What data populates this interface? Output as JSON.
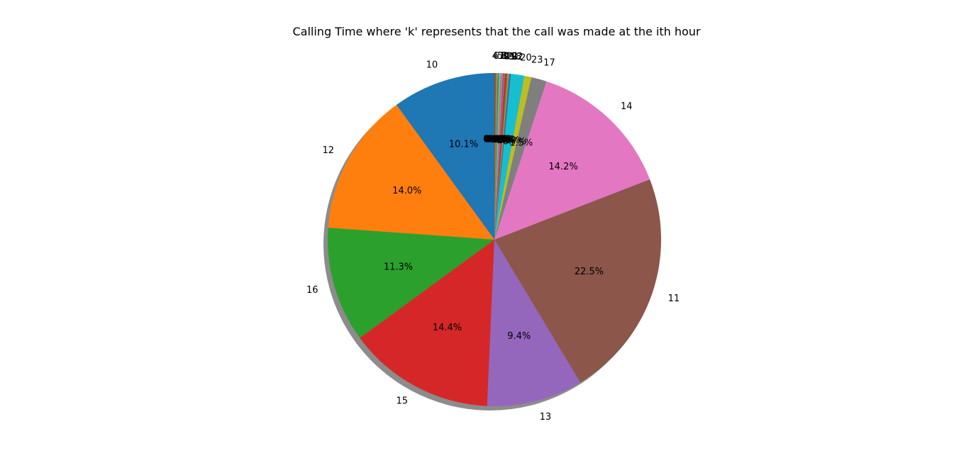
{
  "chart_data": {
    "type": "pie",
    "title": "Calling Time where 'k' represents that the call was made at the ith hour",
    "start_angle_deg": 90,
    "direction": "counterclockwise",
    "shadow": true,
    "slices": [
      {
        "label": "10",
        "value": 10.1,
        "pct_label": "10.1%",
        "color": "#1f77b4"
      },
      {
        "label": "12",
        "value": 14.0,
        "pct_label": "14.0%",
        "color": "#ff7f0e"
      },
      {
        "label": "16",
        "value": 11.3,
        "pct_label": "11.3%",
        "color": "#2ca02c"
      },
      {
        "label": "15",
        "value": 14.4,
        "pct_label": "14.4%",
        "color": "#d62728"
      },
      {
        "label": "13",
        "value": 9.4,
        "pct_label": "9.4%",
        "color": "#9467bd"
      },
      {
        "label": "11",
        "value": 22.5,
        "pct_label": "22.5%",
        "color": "#8c564b"
      },
      {
        "label": "14",
        "value": 14.2,
        "pct_label": "14.2%",
        "color": "#e377c2"
      },
      {
        "label": "17",
        "value": 1.5,
        "pct_label": "1.5%",
        "color": "#7f7f7f"
      },
      {
        "label": "23",
        "value": 0.7,
        "pct_label": "0.7%",
        "color": "#bcbd22"
      },
      {
        "label": "20",
        "value": 1.3,
        "pct_label": "1.3%",
        "color": "#17becf"
      },
      {
        "label": "22",
        "value": 0.2,
        "pct_label": "0.2%",
        "color": "#1f77b4"
      },
      {
        "label": "18",
        "value": 0.1,
        "pct_label": "0.1%",
        "color": "#ff7f0e"
      },
      {
        "label": "9",
        "value": 0.1,
        "pct_label": "0.1%",
        "color": "#2ca02c"
      },
      {
        "label": "21",
        "value": 0.2,
        "pct_label": "0.2%",
        "color": "#d62728"
      },
      {
        "label": "19",
        "value": 0.1,
        "pct_label": "0.1%",
        "color": "#9467bd"
      },
      {
        "label": "2",
        "value": 0.1,
        "pct_label": "0.1%",
        "color": "#8c564b"
      },
      {
        "label": "0",
        "value": 0.1,
        "pct_label": "0.1%",
        "color": "#e377c2"
      },
      {
        "label": "3",
        "value": 0.1,
        "pct_label": "0.1%",
        "color": "#7f7f7f"
      },
      {
        "label": "8",
        "value": 0.1,
        "pct_label": "0.1%",
        "color": "#bcbd22"
      },
      {
        "label": "1",
        "value": 0.1,
        "pct_label": "0.1%",
        "color": "#17becf"
      },
      {
        "label": "7",
        "value": 0.1,
        "pct_label": "0.1%",
        "color": "#1f77b4"
      },
      {
        "label": "5",
        "value": 0.1,
        "pct_label": "0.1%",
        "color": "#ff7f0e"
      },
      {
        "label": "6",
        "value": 0.1,
        "pct_label": "0.1%",
        "color": "#2ca02c"
      },
      {
        "label": "4",
        "value": 0.1,
        "pct_label": "0.1%",
        "color": "#d62728"
      }
    ]
  }
}
